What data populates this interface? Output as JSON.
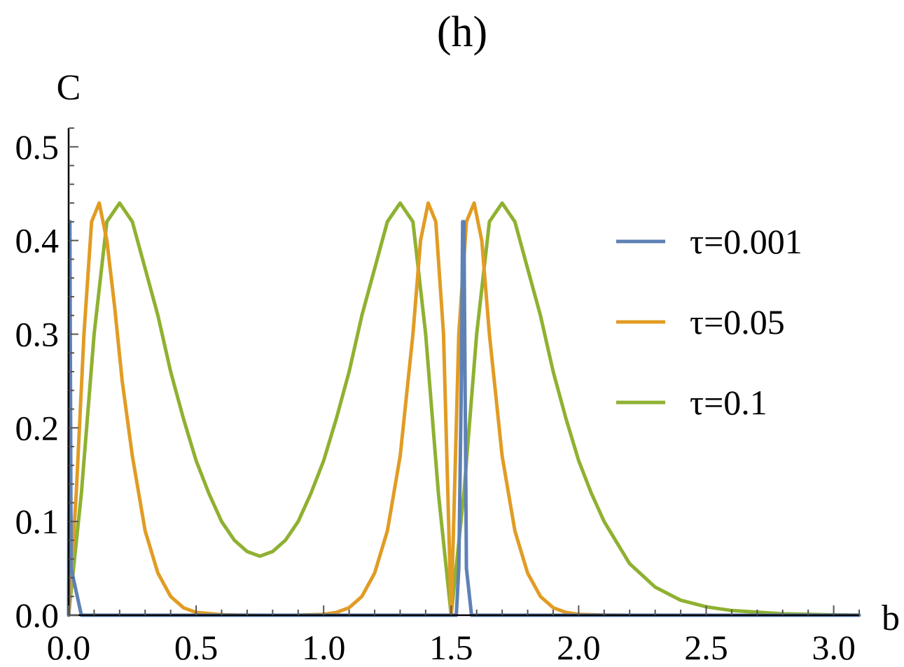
{
  "chart_data": {
    "type": "line",
    "title": "(h)",
    "xlabel": "b",
    "ylabel": "C",
    "xlim": [
      0,
      3.1
    ],
    "ylim": [
      0,
      0.52
    ],
    "x_ticks": [
      "0.0",
      "0.5",
      "1.0",
      "1.5",
      "2.0",
      "2.5",
      "3.0"
    ],
    "y_ticks": [
      "0.0",
      "0.1",
      "0.2",
      "0.3",
      "0.4",
      "0.5"
    ],
    "legend_position": "right",
    "grid": false,
    "series": [
      {
        "name": "τ=0.001",
        "color": "#5e81b5",
        "x": [
          0.0,
          0.0025,
          0.005,
          0.01,
          0.05,
          0.5,
          1.0,
          1.5,
          1.52,
          1.53,
          1.54,
          1.545,
          1.55,
          1.56,
          1.58,
          1.6,
          2.0,
          2.5,
          3.1
        ],
        "y": [
          0.0,
          0.3,
          0.42,
          0.05,
          0.0,
          0.0,
          0.0,
          0.0,
          0.0,
          0.05,
          0.25,
          0.42,
          0.42,
          0.05,
          0.0,
          0.0,
          0.0,
          0.0,
          0.0
        ]
      },
      {
        "name": "τ=0.05",
        "color": "#e19c24",
        "x": [
          0.0,
          0.03,
          0.06,
          0.09,
          0.12,
          0.15,
          0.18,
          0.21,
          0.25,
          0.3,
          0.35,
          0.4,
          0.45,
          0.5,
          0.6,
          0.7,
          0.785,
          0.9,
          1.0,
          1.05,
          1.1,
          1.15,
          1.2,
          1.25,
          1.3,
          1.35,
          1.38,
          1.41,
          1.44,
          1.47,
          1.5,
          1.53,
          1.56,
          1.59,
          1.62,
          1.65,
          1.7,
          1.75,
          1.8,
          1.85,
          1.9,
          1.95,
          2.0,
          2.05,
          2.1,
          2.2,
          2.3,
          2.5,
          3.1
        ],
        "y": [
          0.0,
          0.13,
          0.3,
          0.42,
          0.44,
          0.4,
          0.33,
          0.25,
          0.17,
          0.09,
          0.045,
          0.02,
          0.008,
          0.003,
          0.0005,
          0.0001,
          0.0,
          0.0001,
          0.001,
          0.003,
          0.008,
          0.02,
          0.045,
          0.09,
          0.17,
          0.3,
          0.4,
          0.44,
          0.42,
          0.3,
          0.0,
          0.3,
          0.42,
          0.44,
          0.4,
          0.3,
          0.17,
          0.09,
          0.045,
          0.02,
          0.008,
          0.003,
          0.001,
          0.0005,
          0.0002,
          0.0,
          0.0,
          0.0,
          0.0
        ]
      },
      {
        "name": "τ=0.1",
        "color": "#8fb131",
        "x": [
          0.0,
          0.05,
          0.1,
          0.15,
          0.2,
          0.25,
          0.3,
          0.35,
          0.4,
          0.45,
          0.5,
          0.55,
          0.6,
          0.65,
          0.7,
          0.75,
          0.8,
          0.85,
          0.9,
          0.95,
          1.0,
          1.05,
          1.1,
          1.15,
          1.2,
          1.25,
          1.3,
          1.35,
          1.4,
          1.45,
          1.5,
          1.55,
          1.6,
          1.65,
          1.7,
          1.75,
          1.8,
          1.85,
          1.9,
          1.95,
          2.0,
          2.05,
          2.1,
          2.2,
          2.3,
          2.4,
          2.5,
          2.6,
          2.8,
          3.0,
          3.1
        ],
        "y": [
          0.0,
          0.13,
          0.3,
          0.42,
          0.44,
          0.42,
          0.37,
          0.32,
          0.26,
          0.21,
          0.165,
          0.13,
          0.1,
          0.08,
          0.068,
          0.063,
          0.068,
          0.08,
          0.1,
          0.13,
          0.165,
          0.21,
          0.26,
          0.32,
          0.37,
          0.42,
          0.44,
          0.42,
          0.3,
          0.13,
          0.0,
          0.13,
          0.3,
          0.42,
          0.44,
          0.42,
          0.37,
          0.32,
          0.26,
          0.21,
          0.165,
          0.13,
          0.1,
          0.055,
          0.03,
          0.016,
          0.009,
          0.005,
          0.0015,
          0.0004,
          0.0002
        ]
      }
    ]
  }
}
